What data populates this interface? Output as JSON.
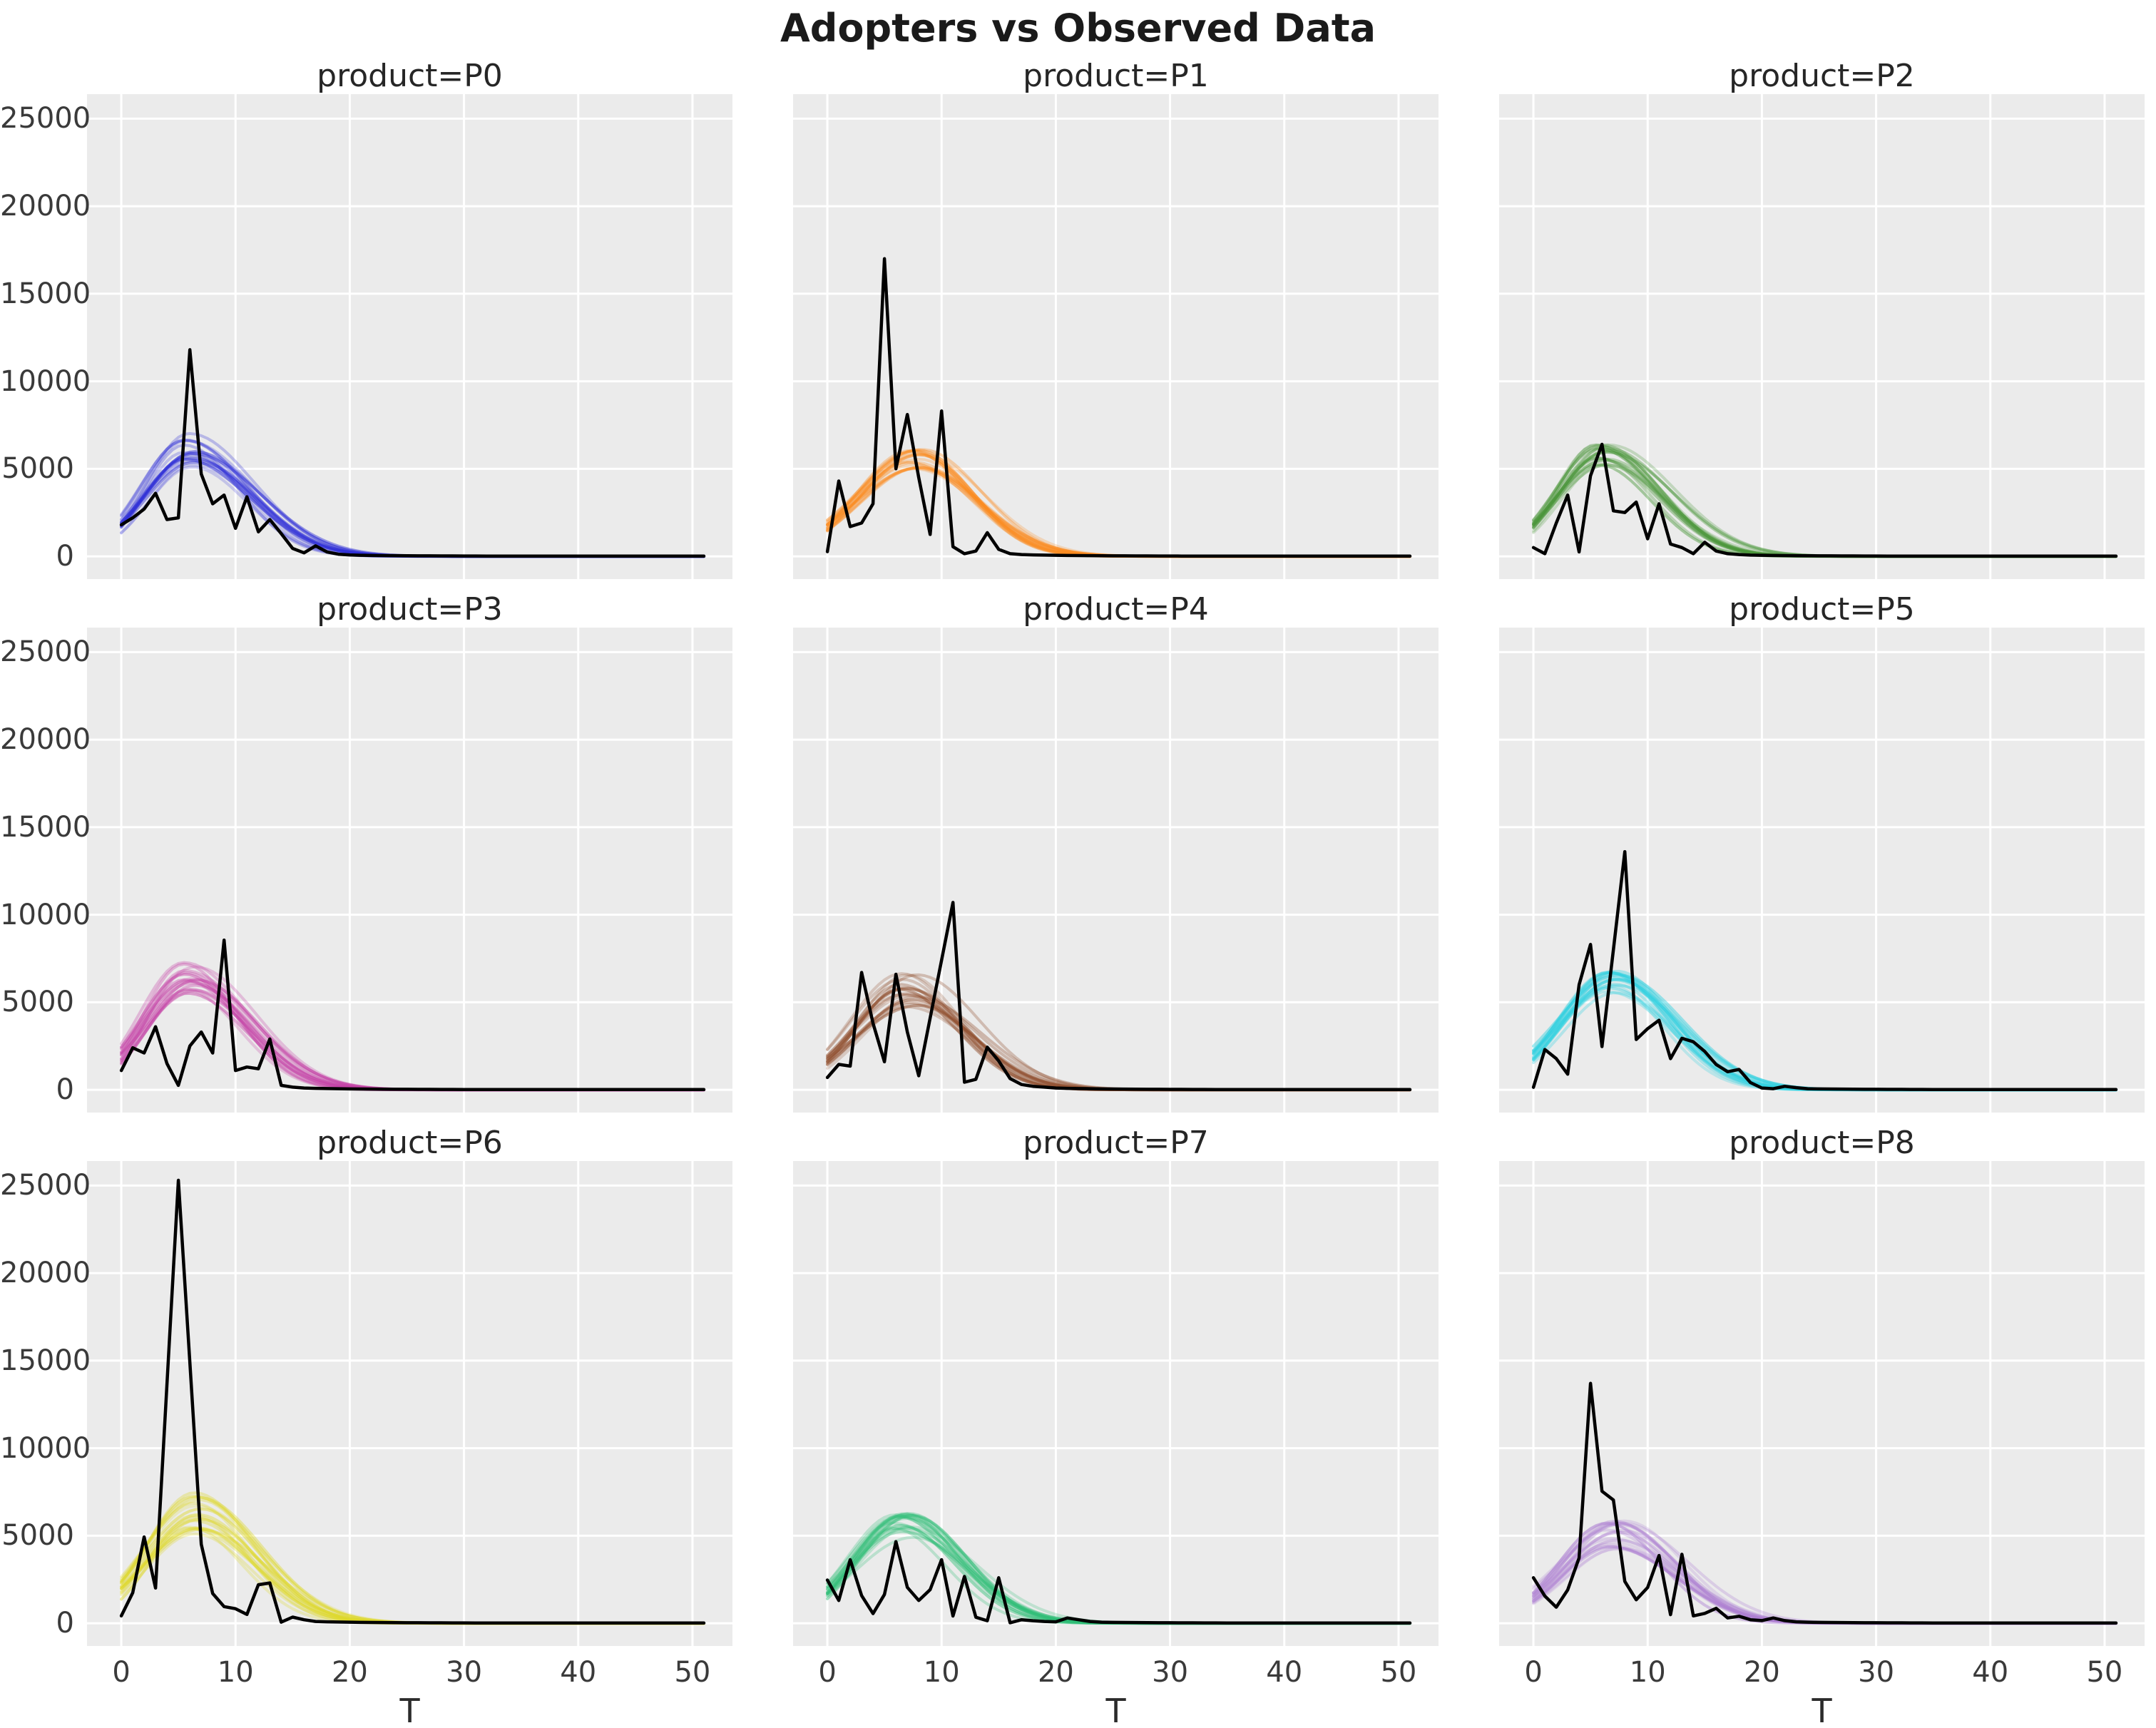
{
  "title": "Adopters vs Observed Data",
  "axis": {
    "xlabel": "T",
    "xticks": [
      0,
      10,
      20,
      30,
      40,
      50
    ],
    "yticks": [
      0,
      5000,
      10000,
      15000,
      20000,
      25000
    ],
    "xlim": [
      -3.0,
      53.5
    ],
    "ylim": [
      -1300,
      26400
    ],
    "grid": "on",
    "legend": "none"
  },
  "style": {
    "figure_bg": "#ffffff",
    "plot_bg": "#ebebeb",
    "grid_color": "#ffffff",
    "observed_color": "#000000",
    "title_color": "#1a1a1a",
    "tick_color": "#3a3a3a"
  },
  "chart_data": [
    {
      "type": "line",
      "product": "P0",
      "title": "product=P0",
      "sample_color": "#2e2ed8",
      "n_samples": 18,
      "sample_peak_range": [
        5100,
        7100
      ],
      "sample_peak_time_range": [
        5.4,
        6.6
      ],
      "x_start": 0,
      "x_step": 1,
      "observed": [
        1800,
        2200,
        2700,
        3600,
        2100,
        2200,
        11800,
        4700,
        3000,
        3500,
        1600,
        3400,
        1400,
        2100,
        1300,
        450,
        200,
        600,
        250,
        120,
        80,
        60,
        50,
        45,
        40,
        35,
        30,
        28,
        25,
        22,
        20,
        18,
        16,
        15,
        14,
        13,
        12,
        11,
        10,
        10,
        10,
        10,
        10,
        10,
        10,
        10,
        10,
        10,
        10,
        10,
        10,
        10
      ]
    },
    {
      "type": "line",
      "product": "P1",
      "title": "product=P1",
      "sample_color": "#fb8a1e",
      "n_samples": 18,
      "sample_peak_range": [
        4900,
        6100
      ],
      "sample_peak_time_range": [
        6.8,
        8.4
      ],
      "x_start": 0,
      "x_step": 1,
      "observed": [
        270,
        4300,
        1700,
        1900,
        3000,
        17000,
        5000,
        8100,
        4500,
        1250,
        8300,
        550,
        150,
        300,
        1350,
        400,
        150,
        100,
        80,
        70,
        60,
        50,
        45,
        40,
        35,
        30,
        28,
        25,
        22,
        20,
        18,
        16,
        15,
        14,
        13,
        12,
        11,
        10,
        10,
        10,
        10,
        10,
        10,
        10,
        10,
        10,
        10,
        10,
        10,
        10,
        10,
        10
      ]
    },
    {
      "type": "line",
      "product": "P2",
      "title": "product=P2",
      "sample_color": "#4a9639",
      "n_samples": 18,
      "sample_peak_range": [
        5200,
        6600
      ],
      "sample_peak_time_range": [
        5.4,
        6.6
      ],
      "x_start": 0,
      "x_step": 1,
      "observed": [
        500,
        150,
        1900,
        3500,
        250,
        4600,
        6400,
        2600,
        2500,
        3100,
        1000,
        3000,
        700,
        500,
        150,
        800,
        300,
        150,
        100,
        70,
        60,
        50,
        45,
        40,
        35,
        30,
        28,
        25,
        22,
        20,
        18,
        16,
        15,
        14,
        13,
        12,
        11,
        10,
        10,
        10,
        10,
        10,
        10,
        10,
        10,
        10,
        10,
        10,
        10,
        10,
        10,
        10
      ]
    },
    {
      "type": "line",
      "product": "P3",
      "title": "product=P3",
      "sample_color": "#c43fa5",
      "n_samples": 18,
      "sample_peak_range": [
        5400,
        7300
      ],
      "sample_peak_time_range": [
        5.4,
        6.6
      ],
      "x_start": 0,
      "x_step": 1,
      "observed": [
        1100,
        2400,
        2100,
        3600,
        1500,
        250,
        2500,
        3300,
        2100,
        8550,
        1100,
        1300,
        1200,
        2900,
        250,
        150,
        100,
        80,
        70,
        60,
        50,
        45,
        40,
        35,
        30,
        28,
        25,
        22,
        20,
        18,
        16,
        15,
        14,
        13,
        12,
        11,
        10,
        10,
        10,
        10,
        10,
        10,
        10,
        10,
        10,
        10,
        10,
        10,
        10,
        10,
        10,
        10
      ]
    },
    {
      "type": "line",
      "product": "P4",
      "title": "product=P4",
      "sample_color": "#8f4c2b",
      "n_samples": 18,
      "sample_peak_range": [
        4700,
        6700
      ],
      "sample_peak_time_range": [
        6.3,
        8.0
      ],
      "x_start": 0,
      "x_step": 1,
      "observed": [
        700,
        1450,
        1350,
        6700,
        3800,
        1600,
        6600,
        3300,
        800,
        4100,
        7400,
        10700,
        430,
        600,
        2430,
        1650,
        640,
        300,
        200,
        150,
        100,
        80,
        70,
        60,
        50,
        45,
        40,
        35,
        30,
        28,
        25,
        22,
        20,
        18,
        16,
        15,
        14,
        13,
        12,
        11,
        10,
        10,
        10,
        10,
        10,
        10,
        10,
        10,
        10,
        10,
        10,
        10
      ]
    },
    {
      "type": "line",
      "product": "P5",
      "title": "product=P5",
      "sample_color": "#2fd1e0",
      "n_samples": 18,
      "sample_peak_range": [
        5500,
        6800
      ],
      "sample_peak_time_range": [
        6.3,
        7.6
      ],
      "x_start": 0,
      "x_step": 1,
      "observed": [
        140,
        2300,
        1780,
        890,
        6000,
        8300,
        2470,
        8000,
        13600,
        2870,
        3490,
        3970,
        1780,
        2940,
        2740,
        2190,
        1440,
        1030,
        1160,
        410,
        100,
        60,
        200,
        120,
        60,
        50,
        45,
        40,
        35,
        30,
        28,
        25,
        22,
        20,
        18,
        16,
        15,
        14,
        13,
        12,
        11,
        10,
        10,
        10,
        10,
        10,
        10,
        10,
        10,
        10,
        10,
        10
      ]
    },
    {
      "type": "line",
      "product": "P6",
      "title": "product=P6",
      "sample_color": "#ded827",
      "n_samples": 18,
      "sample_peak_range": [
        5100,
        7500
      ],
      "sample_peak_time_range": [
        5.8,
        7.0
      ],
      "x_start": 0,
      "x_step": 1,
      "observed": [
        420,
        1740,
        4930,
        2010,
        13650,
        25300,
        14900,
        4510,
        1700,
        950,
        830,
        500,
        2200,
        2300,
        60,
        350,
        200,
        100,
        80,
        70,
        60,
        50,
        45,
        40,
        35,
        30,
        28,
        25,
        22,
        20,
        18,
        16,
        15,
        14,
        13,
        12,
        11,
        10,
        10,
        10,
        10,
        10,
        10,
        10,
        10,
        10,
        10,
        10,
        10,
        10,
        10,
        10
      ]
    },
    {
      "type": "line",
      "product": "P7",
      "title": "product=P7",
      "sample_color": "#2fbe76",
      "n_samples": 18,
      "sample_peak_range": [
        4600,
        6600
      ],
      "sample_peak_time_range": [
        5.6,
        7.6
      ],
      "x_start": 0,
      "x_step": 1,
      "observed": [
        2470,
        1300,
        3630,
        1580,
        550,
        1640,
        4660,
        2050,
        1300,
        1920,
        3630,
        410,
        2670,
        340,
        140,
        2600,
        30,
        200,
        140,
        100,
        80,
        300,
        200,
        100,
        60,
        50,
        45,
        40,
        35,
        30,
        28,
        25,
        22,
        20,
        18,
        16,
        15,
        14,
        13,
        12,
        11,
        10,
        10,
        10,
        10,
        10,
        10,
        10,
        10,
        10,
        10,
        10
      ]
    },
    {
      "type": "line",
      "product": "P8",
      "title": "product=P8",
      "sample_color": "#ae80d2",
      "n_samples": 18,
      "sample_peak_range": [
        4200,
        5900
      ],
      "sample_peak_time_range": [
        6.2,
        8.0
      ],
      "x_start": 0,
      "x_step": 1,
      "observed": [
        2600,
        1550,
        915,
        1900,
        3730,
        13700,
        7540,
        7040,
        2390,
        1340,
        2040,
        3870,
        490,
        3940,
        420,
        560,
        850,
        300,
        400,
        200,
        150,
        300,
        150,
        80,
        60,
        50,
        45,
        40,
        35,
        30,
        28,
        25,
        22,
        20,
        18,
        16,
        15,
        14,
        13,
        12,
        11,
        10,
        10,
        10,
        10,
        10,
        10,
        10,
        10,
        10,
        10,
        10
      ]
    }
  ]
}
